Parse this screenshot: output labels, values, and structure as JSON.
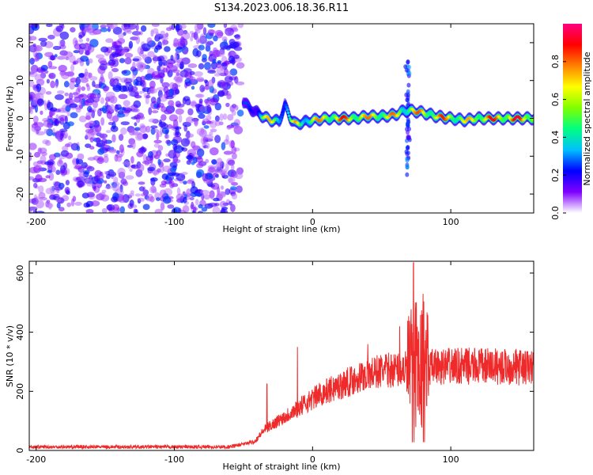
{
  "title": "S134.2023.006.18.36.R11",
  "chart_data": [
    {
      "type": "heatmap",
      "xlabel": "Height of straight line (km)",
      "ylabel": "Frequency (Hz)",
      "xlim": [
        -205,
        160
      ],
      "ylim": [
        -25,
        25
      ],
      "xticks": [
        -200,
        -100,
        0,
        100
      ],
      "yticks": [
        20,
        10,
        0,
        -10,
        -20
      ],
      "colorbar": {
        "label": "Normalized spectral amplitude",
        "range": [
          0,
          1
        ],
        "ticks": [
          0.0,
          0.2,
          0.4,
          0.6,
          0.8
        ],
        "colormap": [
          "#ffffff",
          "#7f00ff",
          "#0000ff",
          "#00c0ff",
          "#00ff80",
          "#80ff00",
          "#ffff00",
          "#ff8000",
          "#ff0000",
          "#ff0080"
        ]
      },
      "noise_region": {
        "x": [
          -205,
          -52
        ],
        "level": "low, scattered"
      },
      "ridge": [
        {
          "x": -50,
          "y": 4.5,
          "amp": 0.25
        },
        {
          "x": -45,
          "y": 2.5,
          "amp": 0.3
        },
        {
          "x": -40,
          "y": 1.5,
          "amp": 0.35
        },
        {
          "x": -36,
          "y": 0.5,
          "amp": 0.7
        },
        {
          "x": -30,
          "y": -0.5,
          "amp": 0.75
        },
        {
          "x": -24,
          "y": -0.8,
          "amp": 0.6
        },
        {
          "x": -20,
          "y": 3.5,
          "amp": 0.4
        },
        {
          "x": -16,
          "y": 0.0,
          "amp": 0.5
        },
        {
          "x": -12,
          "y": -1.5,
          "amp": 0.8
        },
        {
          "x": -6,
          "y": -1.0,
          "amp": 0.6
        },
        {
          "x": 0,
          "y": -0.5,
          "amp": 0.75
        },
        {
          "x": 10,
          "y": 0.0,
          "amp": 0.85
        },
        {
          "x": 20,
          "y": 0.0,
          "amp": 0.9
        },
        {
          "x": 30,
          "y": 0.0,
          "amp": 0.9
        },
        {
          "x": 40,
          "y": 0.5,
          "amp": 0.8
        },
        {
          "x": 50,
          "y": 0.5,
          "amp": 0.85
        },
        {
          "x": 60,
          "y": 1.0,
          "amp": 0.8
        },
        {
          "x": 66,
          "y": 2.0,
          "amp": 0.7
        },
        {
          "x": 72,
          "y": 2.0,
          "amp": 0.8
        },
        {
          "x": 80,
          "y": 1.5,
          "amp": 0.85
        },
        {
          "x": 90,
          "y": 0.5,
          "amp": 0.85
        },
        {
          "x": 100,
          "y": 0.0,
          "amp": 0.9
        },
        {
          "x": 110,
          "y": -0.5,
          "amp": 0.7
        },
        {
          "x": 120,
          "y": 0.0,
          "amp": 0.9
        },
        {
          "x": 140,
          "y": 0.0,
          "amp": 0.95
        },
        {
          "x": 158,
          "y": 0.0,
          "amp": 0.95
        }
      ],
      "spike": {
        "x": 69,
        "y_range": [
          -15,
          15
        ],
        "amp": 0.3
      }
    },
    {
      "type": "line",
      "xlabel": "Height of straight line (km)",
      "ylabel": "SNR (10 * v/v)",
      "xlim": [
        -205,
        160
      ],
      "ylim": [
        0,
        640
      ],
      "xticks": [
        -200,
        -100,
        0,
        100
      ],
      "yticks": [
        600,
        400,
        200,
        0
      ],
      "color": "#ee2a2a",
      "envelope": [
        {
          "x": -205,
          "y": 12
        },
        {
          "x": -60,
          "y": 12
        },
        {
          "x": -42,
          "y": 30
        },
        {
          "x": -35,
          "y": 70
        },
        {
          "x": -25,
          "y": 100
        },
        {
          "x": -15,
          "y": 130
        },
        {
          "x": -5,
          "y": 160
        },
        {
          "x": 5,
          "y": 190
        },
        {
          "x": 20,
          "y": 220
        },
        {
          "x": 35,
          "y": 250
        },
        {
          "x": 50,
          "y": 270
        },
        {
          "x": 65,
          "y": 275
        },
        {
          "x": 80,
          "y": 280
        },
        {
          "x": 100,
          "y": 285
        },
        {
          "x": 130,
          "y": 285
        },
        {
          "x": 160,
          "y": 280
        }
      ],
      "spikes": [
        {
          "x": -33,
          "y": 225
        },
        {
          "x": -11,
          "y": 350
        },
        {
          "x": 40,
          "y": 360
        },
        {
          "x": 63,
          "y": 420
        },
        {
          "x": 73,
          "y": 635
        },
        {
          "x": 80,
          "y": 530
        }
      ]
    }
  ]
}
